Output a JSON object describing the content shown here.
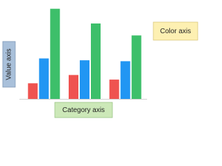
{
  "chart_data": {
    "type": "bar",
    "categories": [
      null,
      null,
      null
    ],
    "series": [
      {
        "color": "#ef5350",
        "values": [
          17,
          26,
          21
        ]
      },
      {
        "color": "#2196f3",
        "values": [
          44,
          42,
          41
        ]
      },
      {
        "color": "#3dbf6a",
        "values": [
          98,
          82,
          69
        ]
      }
    ],
    "ylim": [
      0,
      100
    ],
    "annotations": [
      "Value axis",
      "Category axis",
      "Color axis"
    ]
  }
}
